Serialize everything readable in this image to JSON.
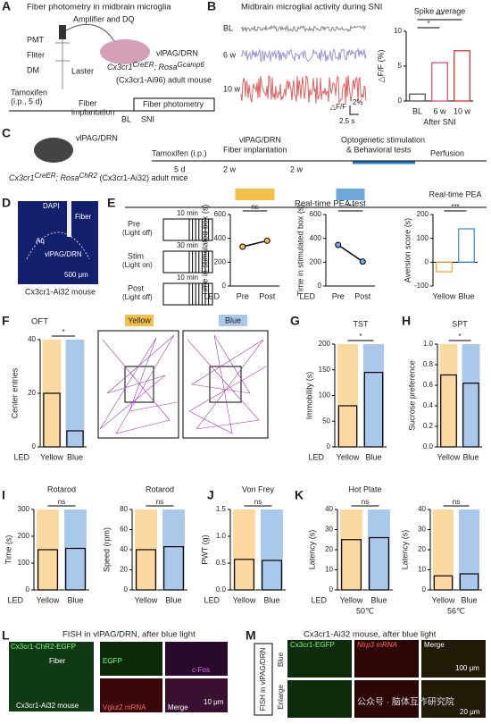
{
  "panel_labels": [
    "A",
    "B",
    "C",
    "D",
    "E",
    "F",
    "G",
    "H",
    "I",
    "J",
    "K",
    "L",
    "M"
  ],
  "A": {
    "title": "Fiber photometry in midbrain microglia",
    "amp": "Amplifier and DQ",
    "pmt": "PMT",
    "filter": "Fliter",
    "dm": "DM",
    "laser": "Laster",
    "region": "vlPAG/DRN",
    "mouse": [
      "Cx3cr1",
      "CreER",
      "; Rosa",
      "Gcamp6"
    ],
    "mouse2": "(Cx3cr1-Ai96) adult mouse",
    "timeline": [
      "Tamoxifen",
      "(i.p., 5 d)",
      "Fiber",
      "implantation",
      "Fiber photometry",
      "BL",
      "SNI"
    ]
  },
  "B": {
    "title": "Midbrain microglial activity during SNI",
    "traces": [
      "BL",
      "6 w",
      "10 w"
    ],
    "scale_y": "2%",
    "scale_x": "2.5 s",
    "scale_label": "△F/F"
  },
  "C": {
    "region": "vlPAG/DRN",
    "mouse": [
      "Cx3cr1",
      "CreER",
      "; Rosa",
      "ChR2",
      " (Cx3cr1-Ai32) adult mice"
    ],
    "steps": [
      "Tamoxifen (i.p.)",
      "vlPAG/DRN",
      "Fiber implantation",
      "Optogenetic stimulation",
      "& Behavioral tests",
      "Perfusion"
    ],
    "intervals": [
      "5 d",
      "2 w",
      "2 w"
    ]
  },
  "D": {
    "dapi": "DAPI",
    "fiber": "Fiber",
    "aq": "Aq",
    "region": "vlPAG/DRN",
    "scale": "500 μm",
    "caption": "Cx3cr1-Ai32 mouse"
  },
  "E": {
    "title": "Real-time PEA test",
    "phases": [
      [
        "Pre",
        "(Light off)",
        "10 min"
      ],
      [
        "Stim",
        "(Light on)",
        "30 min"
      ],
      [
        "Post",
        "(Light off)",
        "10 min"
      ]
    ]
  },
  "F": {
    "title": "OFT",
    "arenas": [
      "Yellow",
      "Blue"
    ]
  },
  "L": {
    "title": "FISH in vlPAG/DRN, after blue light",
    "label": "Cx3cr1-ChR2-EGFP",
    "fiber": "Fiber",
    "caption": "Cx3cr1-Ai32 mouse",
    "egfp": "EGFP",
    "cfos": "c-Fos",
    "vglut": "Vglut2 mRNA",
    "merge": "Merge",
    "scale": "10 μm"
  },
  "M": {
    "title": "Cx3cr1-Ai32 mouse, after blue light",
    "side": "FISH in vlPAG/DRN",
    "rows": [
      "Blue",
      "Enlarge"
    ],
    "cols": [
      "Cx3cr1-EGFP",
      "Nlrp3 mRNA",
      "Merge"
    ],
    "scale1": "100 μm",
    "scale2": "20 μm"
  },
  "watermark": "公众号 · 脑体互作研究院",
  "charts": [
    {
      "type": "bar",
      "title": "Spike average",
      "ylabel": "△F/F (%)",
      "categories": [
        "BL",
        "6 w",
        "10 w"
      ],
      "values": [
        1,
        5.5,
        7.2
      ],
      "colors": [
        "#444444",
        "#e0407a",
        "#e02020"
      ],
      "shade": false,
      "ylim": [
        0,
        10
      ],
      "yticks": [
        0,
        5,
        10
      ],
      "sig": [
        {
          "text": "*",
          "from": 0,
          "to": 1
        },
        {
          "text": "***",
          "from": 0,
          "to": 2
        }
      ],
      "xnote": "After SNI"
    },
    {
      "type": "paired",
      "title": "Yellow",
      "ylabel": "Time in stimulated box (s)",
      "categories": [
        "Pre",
        "Post"
      ],
      "values": [
        330,
        380
      ],
      "colors": [
        "#f5c04a",
        "#f5c04a"
      ],
      "ylim": [
        0,
        600
      ],
      "yticks": [
        0,
        200,
        400,
        600
      ],
      "sig": [
        {
          "text": "ns",
          "from": 0,
          "to": 1
        }
      ],
      "led": "LED"
    },
    {
      "type": "paired",
      "title": "Blue",
      "ylabel": "Time in stimulated box (s)",
      "categories": [
        "Pre",
        "Post"
      ],
      "values": [
        345,
        205
      ],
      "colors": [
        "#6fa8dc",
        "#6fa8dc"
      ],
      "ylim": [
        0,
        600
      ],
      "yticks": [
        0,
        200,
        400,
        600
      ],
      "sig": [
        {
          "text": "***",
          "from": 0,
          "to": 1
        }
      ],
      "led": "LED"
    },
    {
      "type": "bar",
      "title": "Real-time PEA",
      "ylabel": "Aversion score (s)",
      "categories": [
        "Yellow",
        "Blue"
      ],
      "values": [
        -40,
        140
      ],
      "colors": [
        "#f0a030",
        "#3d85c6"
      ],
      "shade": false,
      "ylim": [
        -100,
        200
      ],
      "yticks": [
        -100,
        0,
        100,
        200
      ],
      "sig": [
        {
          "text": "***",
          "from": 0,
          "to": 1
        }
      ]
    },
    {
      "type": "bar",
      "ylabel": "Center entries",
      "categories": [
        "Yellow",
        "Blue"
      ],
      "values": [
        20,
        6
      ],
      "colors": [
        "#fcd9a0",
        "#a9c8ea"
      ],
      "shade": true,
      "ylim": [
        0,
        40
      ],
      "yticks": [
        0,
        20,
        40
      ],
      "sig": [
        {
          "text": "*",
          "from": 0,
          "to": 1
        }
      ],
      "led": "LED"
    },
    {
      "type": "bar",
      "title": "TST",
      "ylabel": "Immobility (s)",
      "categories": [
        "Yellow",
        "Blue"
      ],
      "values": [
        80,
        145
      ],
      "colors": [
        "#fcd9a0",
        "#a9c8ea"
      ],
      "shade": true,
      "ylim": [
        0,
        200
      ],
      "yticks": [
        0,
        50,
        100,
        150,
        200
      ],
      "sig": [
        {
          "text": "*",
          "from": 0,
          "to": 1
        }
      ],
      "led": "LED"
    },
    {
      "type": "bar",
      "title": "SPT",
      "ylabel": "Sucrose preference",
      "categories": [
        "Yellow",
        "Blue"
      ],
      "values": [
        0.7,
        0.62
      ],
      "colors": [
        "#fcd9a0",
        "#a9c8ea"
      ],
      "shade": true,
      "ylim": [
        0,
        1
      ],
      "yticks": [
        {
          "value": 0,
          "label": "0.0"
        },
        0.2,
        0.4,
        0.6,
        0.8,
        {
          "value": 1,
          "label": "1.0"
        }
      ],
      "sig": [
        {
          "text": "*",
          "from": 0,
          "to": 1
        }
      ]
    },
    {
      "type": "bar",
      "title": "Rotarod",
      "ylabel": "Time (s)",
      "categories": [
        "Yellow",
        "Blue"
      ],
      "values": [
        150,
        155
      ],
      "colors": [
        "#fcd9a0",
        "#a9c8ea"
      ],
      "shade": true,
      "ylim": [
        0,
        300
      ],
      "yticks": [
        0,
        100,
        200,
        300
      ],
      "sig": [
        {
          "text": "ns",
          "from": 0,
          "to": 1
        }
      ],
      "led": "LED"
    },
    {
      "type": "bar",
      "title": "Rotarod",
      "ylabel": "Speed (rpm)",
      "categories": [
        "Yellow",
        "Blue"
      ],
      "values": [
        40,
        43
      ],
      "colors": [
        "#fcd9a0",
        "#a9c8ea"
      ],
      "shade": true,
      "ylim": [
        0,
        80
      ],
      "yticks": [
        0,
        20,
        40,
        60,
        80
      ],
      "sig": [
        {
          "text": "ns",
          "from": 0,
          "to": 1
        }
      ]
    },
    {
      "type": "bar",
      "title": "Von Frey",
      "ylabel": "PWT (g)",
      "categories": [
        "Yellow",
        "Blue"
      ],
      "values": [
        0.57,
        0.55
      ],
      "colors": [
        "#fcd9a0",
        "#a9c8ea"
      ],
      "shade": true,
      "ylim": [
        0,
        1.5
      ],
      "yticks": [
        {
          "value": 0,
          "label": "0.0"
        },
        0.5,
        {
          "value": 1,
          "label": "1.0"
        },
        1.5
      ],
      "sig": [
        {
          "text": "ns",
          "from": 0,
          "to": 1
        }
      ],
      "led": "LED"
    },
    {
      "type": "bar",
      "title": "Hot Plate",
      "ylabel": "Latency (s)",
      "categories": [
        "Yellow",
        "Blue"
      ],
      "values": [
        25,
        26
      ],
      "colors": [
        "#fcd9a0",
        "#a9c8ea"
      ],
      "shade": true,
      "ylim": [
        0,
        40
      ],
      "yticks": [
        0,
        10,
        20,
        30,
        40
      ],
      "sig": [
        {
          "text": "ns",
          "from": 0,
          "to": 1
        }
      ],
      "led": "LED",
      "xnote": "50℃"
    },
    {
      "type": "bar",
      "ylabel": "Latency (s)",
      "categories": [
        "Yellow",
        "Blue"
      ],
      "values": [
        7,
        8
      ],
      "colors": [
        "#fcd9a0",
        "#a9c8ea"
      ],
      "shade": true,
      "ylim": [
        0,
        40
      ],
      "yticks": [
        0,
        10,
        20,
        30,
        40
      ],
      "sig": [
        {
          "text": "ns",
          "from": 0,
          "to": 1
        }
      ],
      "xnote": "56℃"
    }
  ]
}
